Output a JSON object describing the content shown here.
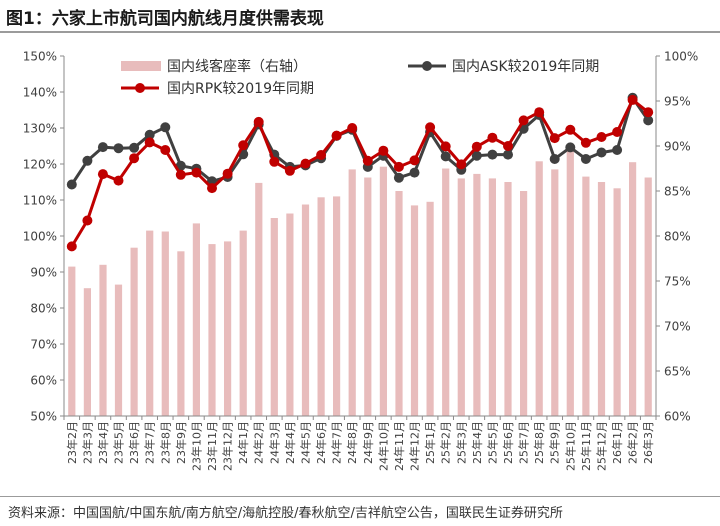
{
  "figure_title": "图1：六家上市航司国内航线月度供需表现",
  "source": "资料来源：中国国航/中国东航/南方航空/海航控股/春秋航空/吉祥航空公告，国联民生证券研究所",
  "colors": {
    "bar": "#e8bcbc",
    "ask": "#404040",
    "rpk": "#c00000"
  },
  "chart_data": {
    "type": "bar+line",
    "title": "",
    "categories": [
      "23年2月",
      "23年3月",
      "23年4月",
      "23年5月",
      "23年6月",
      "23年7月",
      "23年8月",
      "23年9月",
      "23年10月",
      "23年11月",
      "23年12月",
      "24年1月",
      "24年2月",
      "24年3月",
      "24年4月",
      "24年5月",
      "24年6月",
      "24年7月",
      "24年8月",
      "24年9月",
      "24年10月",
      "24年11月",
      "24年12月",
      "25年1月",
      "25年2月",
      "25年3月",
      "25年4月",
      "25年5月",
      "25年6月",
      "25年7月",
      "25年8月",
      "25年9月",
      "25年10月",
      "25年11月",
      "25年12月",
      "26年1月",
      "26年2月",
      "26年3月"
    ],
    "left_axis": {
      "ticks": [
        "50%",
        "60%",
        "70%",
        "80%",
        "90%",
        "100%",
        "110%",
        "120%",
        "130%",
        "140%",
        "150%"
      ],
      "range": [
        50,
        150
      ]
    },
    "right_axis": {
      "ticks": [
        "60%",
        "65%",
        "70%",
        "75%",
        "80%",
        "85%",
        "90%",
        "95%",
        "100%"
      ],
      "range": [
        60,
        100
      ]
    },
    "legend": {
      "position": "top",
      "bar": "国内线客座率（右轴）",
      "ask": "国内ASK较2019年同期",
      "rpk": "国内RPK较2019年同期"
    },
    "series": [
      {
        "name": "国内线客座率（右轴）",
        "type": "bar",
        "axis": "right",
        "values": [
          76.6,
          74.2,
          76.8,
          74.6,
          78.7,
          80.6,
          80.5,
          78.3,
          81.4,
          79.1,
          79.4,
          80.6,
          85.9,
          82.0,
          82.5,
          83.5,
          84.3,
          84.4,
          87.4,
          86.5,
          87.7,
          85.0,
          83.4,
          83.8,
          87.5,
          86.4,
          86.9,
          86.4,
          86.0,
          85.0,
          88.3,
          87.4,
          89.5,
          86.6,
          86.0,
          85.3,
          88.2,
          86.5
        ]
      },
      {
        "name": "国内ASK较2019年同期",
        "type": "line",
        "axis": "left",
        "values": [
          114.3,
          120.9,
          124.7,
          124.4,
          124.5,
          128.1,
          130.2,
          119.5,
          118.7,
          115.2,
          116.4,
          122.7,
          131.0,
          122.6,
          119.2,
          119.6,
          121.6,
          127.8,
          129.5,
          119.2,
          122.3,
          116.2,
          117.6,
          128.8,
          122.1,
          118.4,
          122.3,
          122.6,
          122.6,
          129.8,
          133.6,
          121.4,
          124.6,
          121.4,
          123.2,
          123.9,
          138.4,
          132.1
        ]
      },
      {
        "name": "国内RPK较2019年同期",
        "type": "line",
        "axis": "left",
        "values": [
          97.1,
          104.3,
          117.2,
          115.4,
          121.6,
          126.0,
          123.9,
          117.0,
          117.6,
          113.3,
          117.3,
          125.2,
          131.7,
          120.6,
          118.1,
          120.1,
          122.5,
          127.9,
          130.0,
          120.9,
          123.7,
          119.2,
          121.0,
          130.2,
          124.9,
          119.9,
          124.8,
          127.3,
          125.0,
          132.1,
          134.4,
          127.2,
          129.5,
          125.9,
          127.5,
          128.9,
          137.8,
          134.4
        ]
      }
    ]
  }
}
